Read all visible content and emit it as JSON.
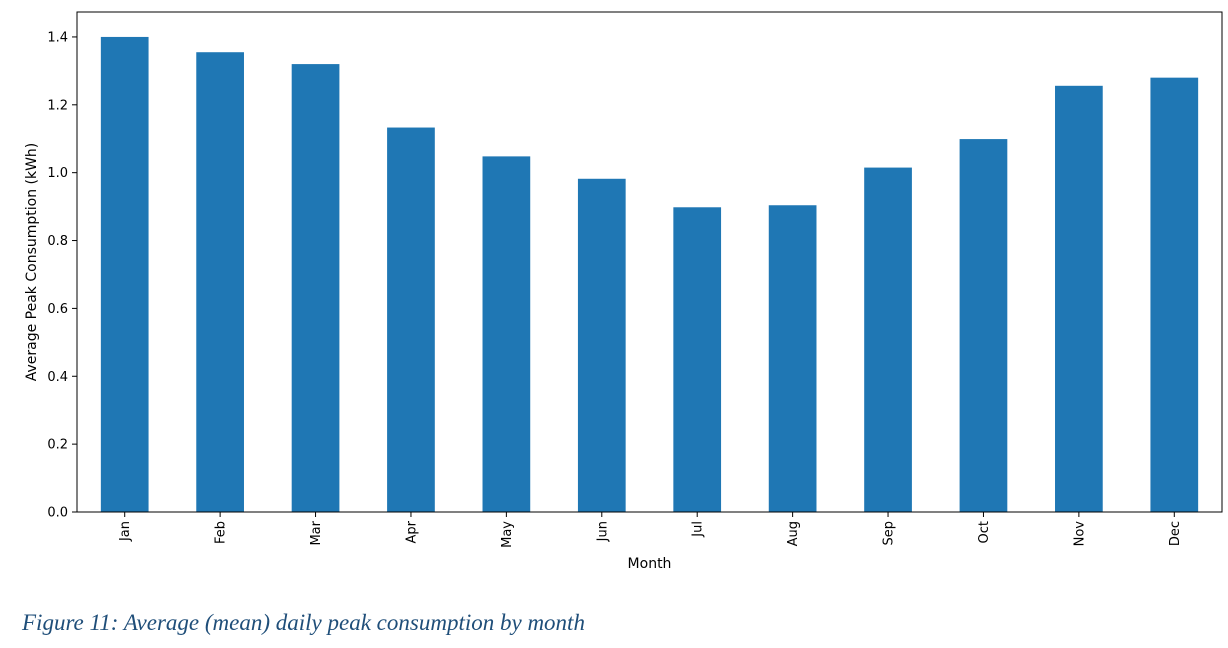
{
  "chart_data": {
    "type": "bar",
    "categories": [
      "Jan",
      "Feb",
      "Mar",
      "Apr",
      "May",
      "Jun",
      "Jul",
      "Aug",
      "Sep",
      "Oct",
      "Nov",
      "Dec"
    ],
    "values": [
      1.4,
      1.355,
      1.32,
      1.133,
      1.048,
      0.982,
      0.898,
      0.904,
      1.015,
      1.099,
      1.256,
      1.28
    ],
    "title": "",
    "xlabel": "Month",
    "ylabel": "Average Peak Consumption (kWh)",
    "ylim": [
      0,
      1.4735
    ],
    "yticks": [
      "0.0",
      "0.2",
      "0.4",
      "0.6",
      "0.8",
      "1.0",
      "1.2",
      "1.4"
    ],
    "bar_color": "#1f77b4",
    "grid": false,
    "legend": "none"
  },
  "caption": "Figure 11: Average (mean) daily peak consumption by month"
}
